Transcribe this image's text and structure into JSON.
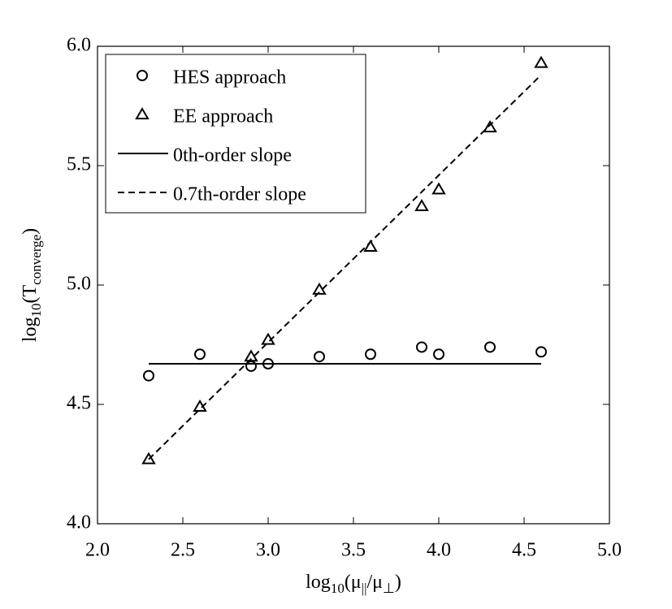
{
  "chart_data": {
    "type": "scatter",
    "xlabel": [
      "log",
      "10",
      "(μ",
      "||",
      "/μ",
      "⊥",
      ")"
    ],
    "ylabel": [
      "log",
      "10",
      "(T",
      "converge",
      ")"
    ],
    "xlim": [
      2.0,
      5.0
    ],
    "ylim": [
      4.0,
      6.0
    ],
    "xticks": [
      {
        "value": 2.0,
        "label": "2.0"
      },
      2.5,
      {
        "value": 3.0,
        "label": "3.0"
      },
      3.5,
      {
        "value": 4.0,
        "label": "4.0"
      },
      4.5,
      {
        "value": 5.0,
        "label": "5.0"
      }
    ],
    "yticks": [
      {
        "value": 4.0,
        "label": "4.0"
      },
      4.5,
      {
        "value": 5.0,
        "label": "5.0"
      },
      5.5,
      {
        "value": 6.0,
        "label": "6.0"
      }
    ],
    "legend": "upper left",
    "series": [
      {
        "name": "HES approach",
        "color": "#000000",
        "marker": "circle",
        "x": [
          2.3,
          2.6,
          2.9,
          3.0,
          3.3,
          3.6,
          3.9,
          4.0,
          4.3,
          4.6
        ],
        "values": [
          4.62,
          4.71,
          4.66,
          4.67,
          4.7,
          4.71,
          4.74,
          4.71,
          4.74,
          4.72
        ]
      },
      {
        "name": "EE approach",
        "color": "#000000",
        "marker": "triangle",
        "x": [
          2.3,
          2.6,
          2.9,
          3.0,
          3.3,
          3.6,
          3.9,
          4.0,
          4.3,
          4.6
        ],
        "values": [
          4.27,
          4.49,
          4.7,
          4.77,
          4.98,
          5.16,
          5.33,
          5.4,
          5.66,
          5.93
        ]
      },
      {
        "name": "0th-order slope",
        "color": "#000000",
        "line": "solid",
        "x": [
          2.3,
          4.6
        ],
        "values": [
          4.67,
          4.67
        ]
      },
      {
        "name": "0.7th-order slope",
        "color": "#000000",
        "line": "dashed",
        "x": [
          2.3,
          4.6
        ],
        "values": [
          4.27,
          5.88
        ]
      }
    ]
  }
}
